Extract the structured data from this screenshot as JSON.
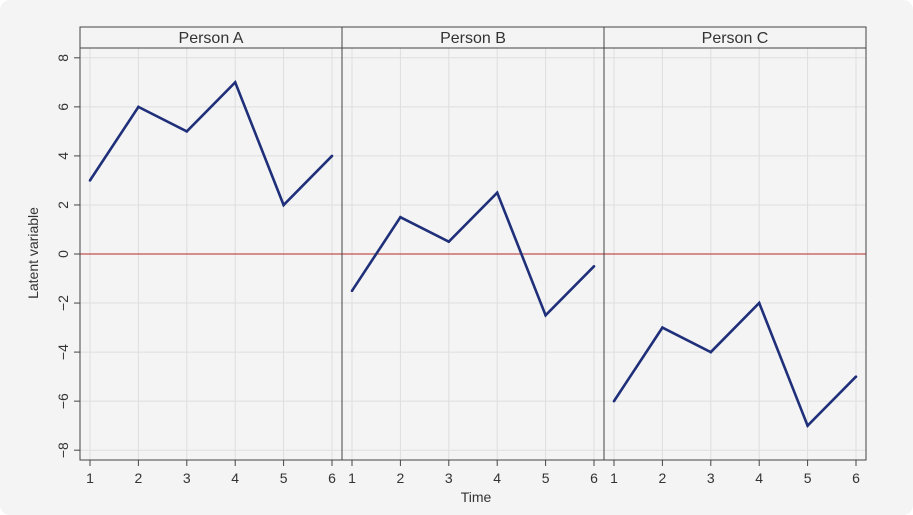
{
  "chart_data": {
    "type": "line",
    "xlabel": "Time",
    "ylabel": "Latent variable",
    "x": [
      1,
      2,
      3,
      4,
      5,
      6
    ],
    "xticks": [
      1,
      2,
      3,
      4,
      5,
      6
    ],
    "ylim": [
      -8.4,
      8.4
    ],
    "yticks": [
      -8,
      -6,
      -4,
      -2,
      0,
      2,
      4,
      6,
      8
    ],
    "ytick_labels": [
      "−8",
      "−6",
      "−4",
      "−2",
      "0",
      "2",
      "4",
      "6",
      "8"
    ],
    "grid": true,
    "reference_line": {
      "y": 0,
      "color": "#c0504d"
    },
    "line_color": "#1f2f7a",
    "panels": [
      {
        "strip": "Person A",
        "values": [
          3,
          6,
          5,
          7,
          2,
          4
        ]
      },
      {
        "strip": "Person B",
        "values": [
          -1.5,
          1.5,
          0.5,
          2.5,
          -2.5,
          -0.5
        ]
      },
      {
        "strip": "Person C",
        "values": [
          -6,
          -3,
          -4,
          -2,
          -7,
          -5
        ]
      }
    ]
  }
}
